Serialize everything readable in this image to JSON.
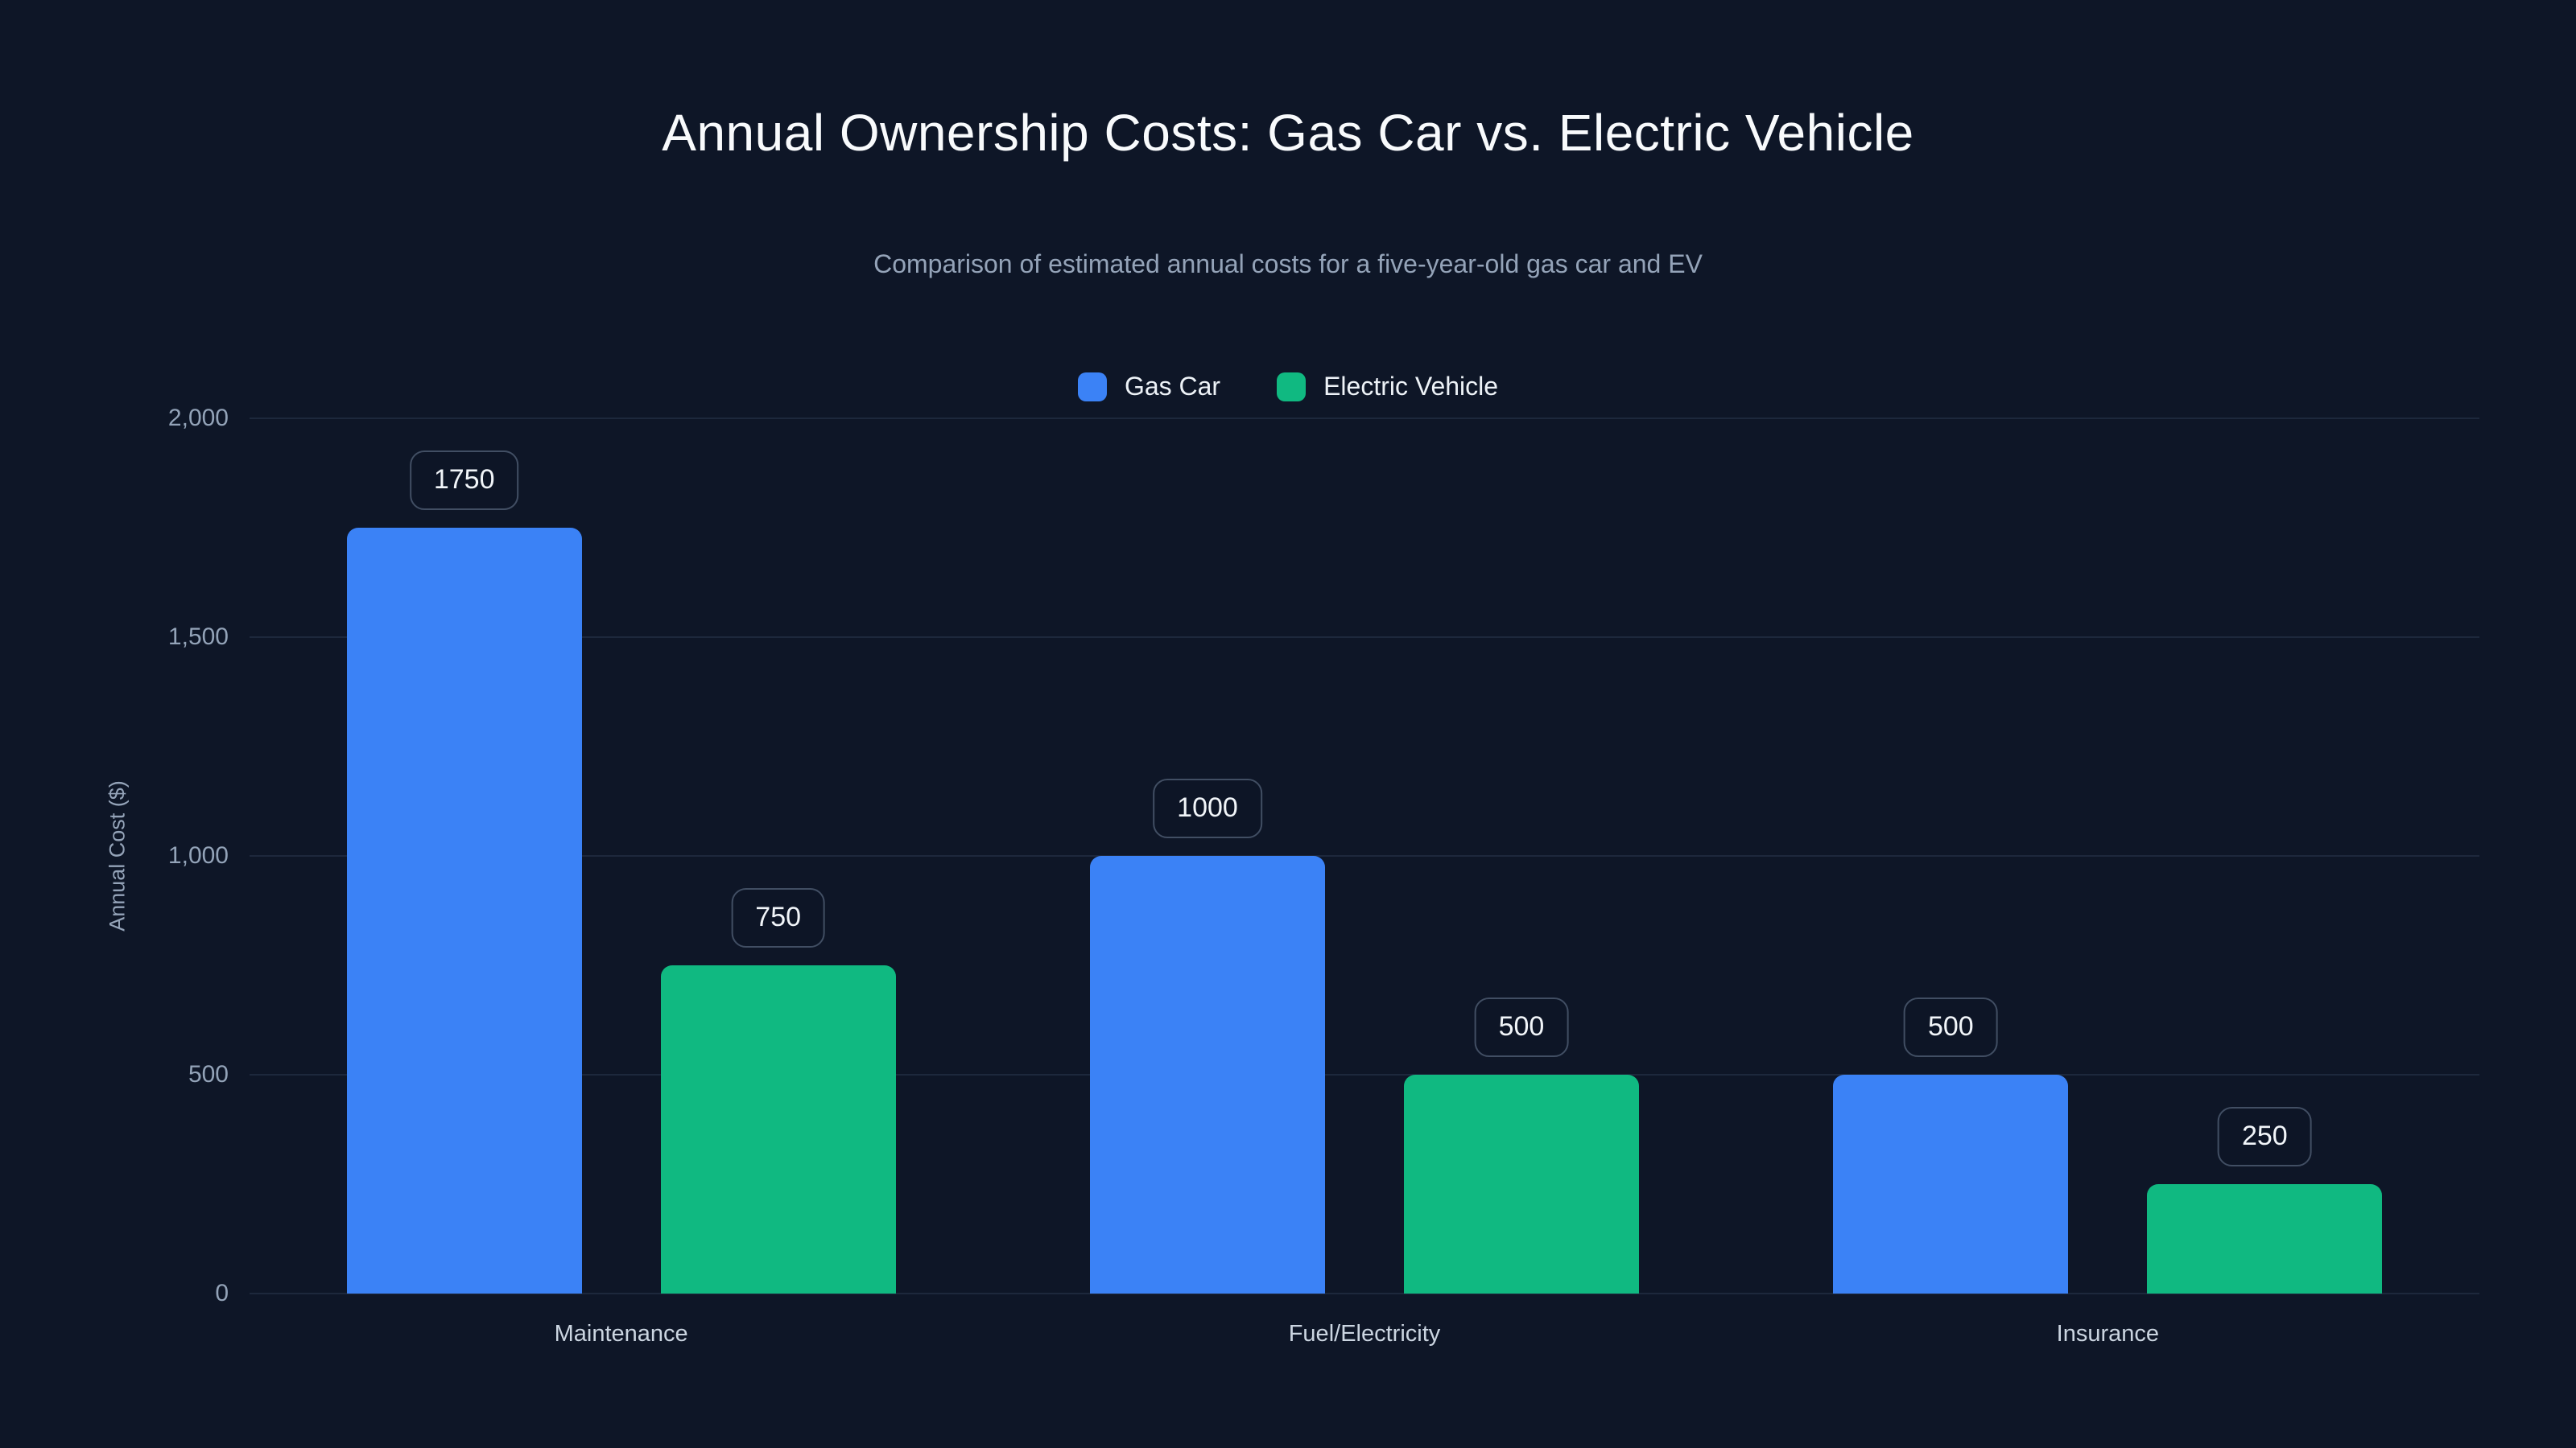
{
  "header": {
    "title": "Annual Ownership Costs: Gas Car vs. Electric Vehicle",
    "subtitle": "Comparison of estimated annual costs for a five-year-old gas car and EV"
  },
  "chart_data": {
    "type": "bar",
    "title": "Annual Ownership Costs: Gas Car vs. Electric Vehicle",
    "subtitle": "Comparison of estimated annual costs for a five-year-old gas car and EV",
    "categories": [
      "Maintenance",
      "Fuel/Electricity",
      "Insurance"
    ],
    "series": [
      {
        "name": "Gas Car",
        "color": "#3b82f6",
        "values": [
          1750,
          1000,
          500
        ]
      },
      {
        "name": "Electric Vehicle",
        "color": "#10b981",
        "values": [
          750,
          500,
          250
        ]
      }
    ],
    "bar_value_labels": [
      [
        "1750",
        "1000",
        "500"
      ],
      [
        "750",
        "500",
        "250"
      ]
    ],
    "xlabel": "",
    "ylabel": "Annual Cost ($)",
    "ylim": [
      0,
      2000
    ],
    "yticks": [
      0,
      500,
      1000,
      1500,
      2000
    ],
    "ytick_labels": [
      "0",
      "500",
      "1,000",
      "1,500",
      "2,000"
    ],
    "grid": true,
    "legend_position": "top",
    "background_color": "#0e1627"
  }
}
